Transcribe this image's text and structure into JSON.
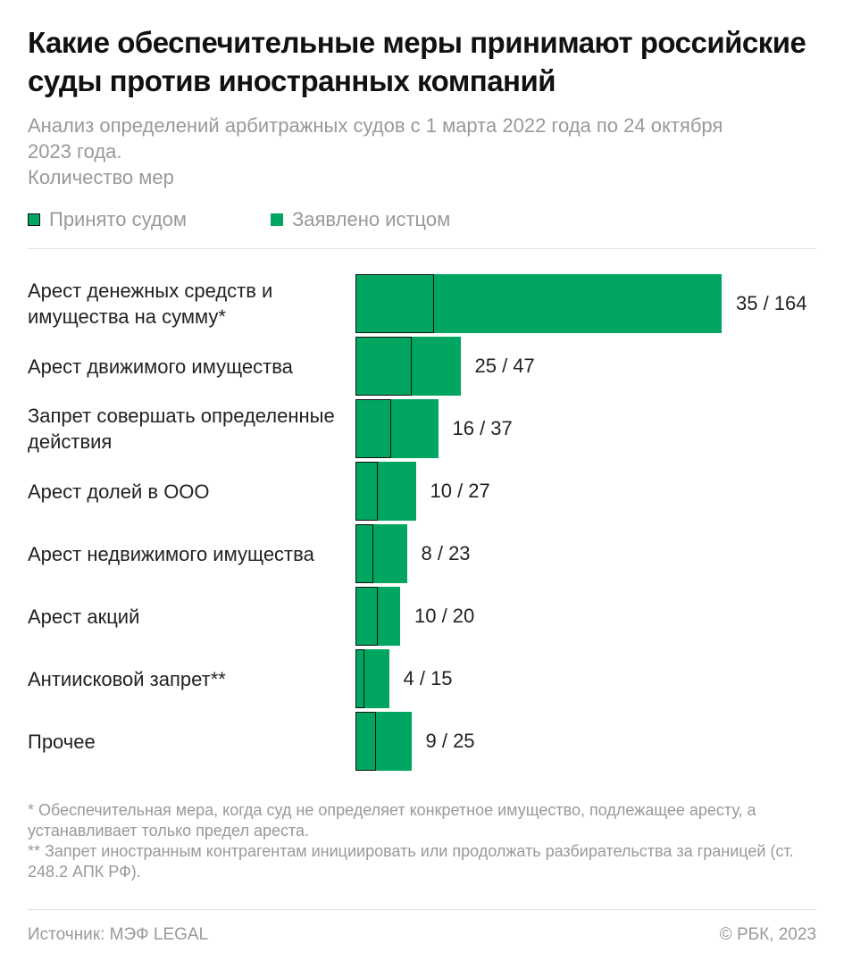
{
  "chart_data": {
    "type": "bar",
    "orientation": "horizontal",
    "title": "Какие обеспечительные меры принимают российские суды против иностранных компаний",
    "subtitle": "Анализ определений арбитражных судов с 1 марта 2022 года по 24 октября 2023 года.",
    "unit_label": "Количество мер",
    "legend": [
      "Принято судом",
      "Заявлено истцом"
    ],
    "categories": [
      "Арест денежных средств и имущества на сумму*",
      "Арест движимого имущества",
      "Запрет совершать определенные действия",
      "Арест долей в ООО",
      "Арест недвижимого имущества",
      "Арест акций",
      "Антиисковой запрет**",
      "Прочее"
    ],
    "series": [
      {
        "name": "Принято судом",
        "values": [
          35,
          25,
          16,
          10,
          8,
          10,
          4,
          9
        ]
      },
      {
        "name": "Заявлено истцом",
        "values": [
          164,
          47,
          37,
          27,
          23,
          20,
          15,
          25
        ]
      }
    ],
    "data_labels": [
      "35 / 164",
      "25 / 47",
      "16 / 37",
      "10 / 27",
      "8 / 23",
      "10 / 20",
      "4 / 15",
      "9 / 25"
    ],
    "colors": {
      "bar": "#00a65f",
      "accepted_border": "#111111"
    }
  },
  "notes": [
    "* Обеспечительная мера, когда суд не определяет конкретное имущество, подлежащее аресту, а устанавливает только предел ареста.",
    "** Запрет иностранным контрагентам инициировать или продолжать разбирательства за границей (ст. 248.2 АПК РФ)."
  ],
  "footer": {
    "source": "Источник: МЭФ LEGAL",
    "copyright": "© РБК, 2023"
  }
}
